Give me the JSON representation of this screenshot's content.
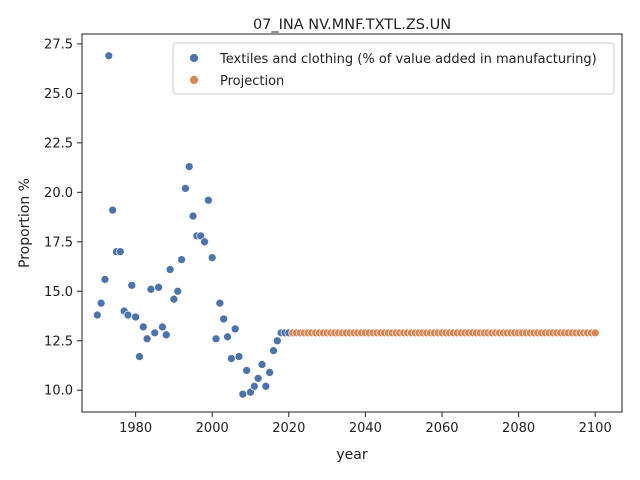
{
  "chart_data": {
    "type": "scatter",
    "title": "07_INA NV.MNF.TXTL.ZS.UN",
    "xlabel": "year",
    "ylabel": "Proportion %",
    "xlim": [
      1966,
      2107
    ],
    "ylim": [
      8.9,
      28.0
    ],
    "xticks": [
      1980,
      2000,
      2020,
      2040,
      2060,
      2080,
      2100
    ],
    "xtick_labels": [
      "1980",
      "2000",
      "2020",
      "2040",
      "2060",
      "2080",
      "2100"
    ],
    "yticks": [
      10.0,
      12.5,
      15.0,
      17.5,
      20.0,
      22.5,
      25.0,
      27.5
    ],
    "ytick_labels": [
      "10.0",
      "12.5",
      "15.0",
      "17.5",
      "20.0",
      "22.5",
      "25.0",
      "27.5"
    ],
    "grid": false,
    "legend_position": "top-right",
    "series": [
      {
        "name": "Textiles and clothing (% of value added in manufacturing)",
        "color": "#4c72b0",
        "points": [
          [
            1970,
            13.8
          ],
          [
            1971,
            14.4
          ],
          [
            1972,
            15.6
          ],
          [
            1973,
            26.9
          ],
          [
            1974,
            19.1
          ],
          [
            1975,
            17.0
          ],
          [
            1976,
            17.0
          ],
          [
            1977,
            14.0
          ],
          [
            1978,
            13.8
          ],
          [
            1979,
            15.3
          ],
          [
            1980,
            13.7
          ],
          [
            1981,
            11.7
          ],
          [
            1982,
            13.2
          ],
          [
            1983,
            12.6
          ],
          [
            1984,
            15.1
          ],
          [
            1985,
            12.9
          ],
          [
            1986,
            15.2
          ],
          [
            1987,
            13.2
          ],
          [
            1988,
            12.8
          ],
          [
            1989,
            16.1
          ],
          [
            1990,
            14.6
          ],
          [
            1991,
            15.0
          ],
          [
            1992,
            16.6
          ],
          [
            1993,
            20.2
          ],
          [
            1994,
            21.3
          ],
          [
            1995,
            18.8
          ],
          [
            1996,
            17.8
          ],
          [
            1997,
            17.8
          ],
          [
            1998,
            17.5
          ],
          [
            1999,
            19.6
          ],
          [
            2000,
            16.7
          ],
          [
            2001,
            12.6
          ],
          [
            2002,
            14.4
          ],
          [
            2003,
            13.6
          ],
          [
            2004,
            12.7
          ],
          [
            2005,
            11.6
          ],
          [
            2006,
            13.1
          ],
          [
            2007,
            11.7
          ],
          [
            2008,
            9.8
          ],
          [
            2009,
            11.0
          ],
          [
            2010,
            9.9
          ],
          [
            2011,
            10.2
          ],
          [
            2012,
            10.6
          ],
          [
            2013,
            11.3
          ],
          [
            2014,
            10.2
          ],
          [
            2015,
            10.9
          ],
          [
            2016,
            12.0
          ],
          [
            2017,
            12.5
          ],
          [
            2018,
            12.9
          ],
          [
            2019,
            12.9
          ],
          [
            2020,
            12.9
          ]
        ]
      },
      {
        "name": "Projection",
        "color": "#dd8452",
        "x_start": 2021,
        "x_end": 2100,
        "value": 12.9
      }
    ]
  }
}
